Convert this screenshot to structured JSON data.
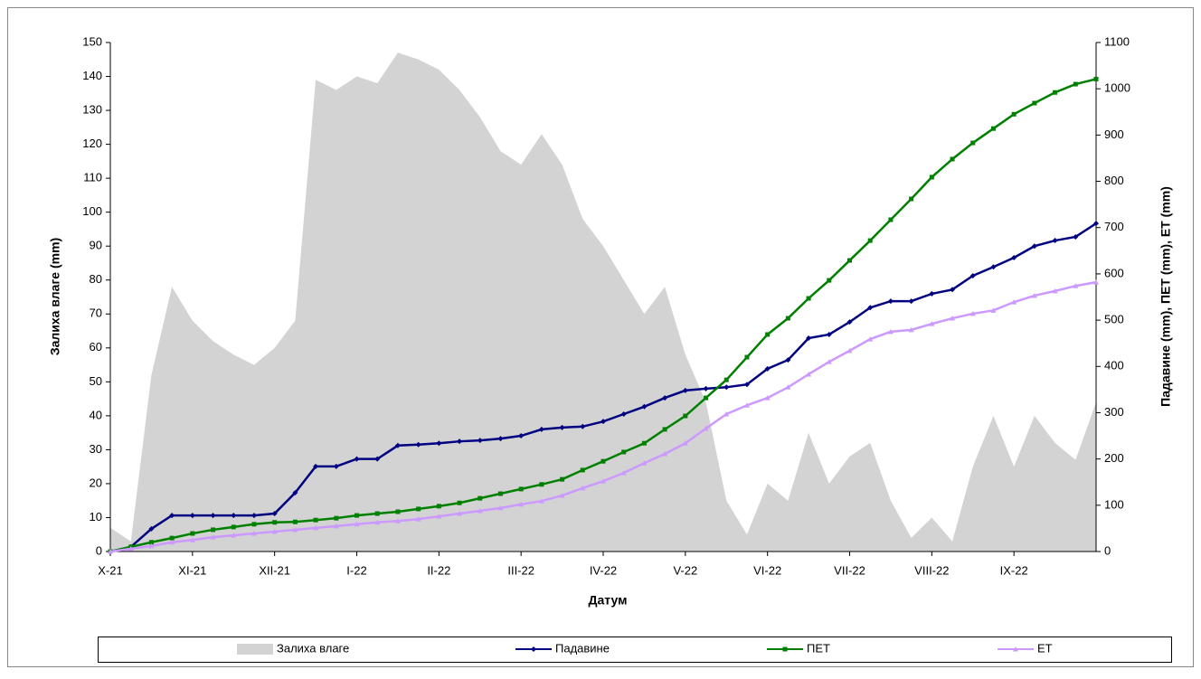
{
  "chart_data": {
    "type": "line",
    "x_label": "Датум",
    "y_label": "Залиха влаге (mm)",
    "y2_label": "Падавине (mm), ПЕТ (mm), ЕТ (mm)",
    "categories": [
      "X-21",
      null,
      null,
      null,
      "XI-21",
      null,
      null,
      null,
      "XII-21",
      null,
      null,
      null,
      "I-22",
      null,
      null,
      null,
      "II-22",
      null,
      null,
      null,
      "III-22",
      null,
      null,
      null,
      "IV-22",
      null,
      null,
      null,
      "V-22",
      null,
      null,
      null,
      "VI-22",
      null,
      null,
      null,
      "VII-22",
      null,
      null,
      null,
      "VIII-22",
      null,
      null,
      null,
      "IX-22",
      null,
      null,
      null,
      null
    ],
    "ylim": [
      0,
      150
    ],
    "yticks": [
      0,
      10,
      20,
      30,
      40,
      50,
      60,
      70,
      80,
      90,
      100,
      110,
      120,
      130,
      140,
      150
    ],
    "y2lim": [
      0,
      1100
    ],
    "y2ticks": [
      0,
      100,
      200,
      300,
      400,
      500,
      600,
      700,
      800,
      900,
      1000,
      1100
    ],
    "legend": "bottom",
    "series": [
      {
        "name": "Залиха влаге",
        "type": "area",
        "color": "#d3d3d3",
        "values": [
          7,
          3,
          52,
          78,
          68,
          62,
          58,
          55,
          60,
          68,
          139,
          136,
          140,
          138,
          147,
          145,
          142,
          136,
          128,
          118,
          114,
          123,
          114,
          98,
          90,
          80,
          70,
          78,
          58,
          44,
          15,
          5,
          20,
          15,
          35,
          20,
          28,
          32,
          15,
          4,
          10,
          3,
          25,
          40,
          25,
          40,
          32,
          27,
          44
        ]
      },
      {
        "name": "Падавине",
        "type": "line",
        "axis": "y2",
        "color": "#000080",
        "marker": "diamond",
        "values": [
          0,
          10,
          49,
          78,
          78,
          78,
          78,
          78,
          82,
          127,
          184,
          184,
          200,
          200,
          229,
          231,
          234,
          238,
          240,
          244,
          250,
          264,
          268,
          270,
          281,
          297,
          313,
          332,
          348,
          352,
          355,
          361,
          395,
          414,
          461,
          469,
          496,
          527,
          541,
          541,
          557,
          566,
          596,
          615,
          635,
          660,
          672,
          680,
          709
        ]
      },
      {
        "name": "ПЕТ",
        "type": "line",
        "axis": "y2",
        "color": "#008000",
        "marker": "square",
        "values": [
          0,
          10,
          20,
          29,
          39,
          47,
          53,
          59,
          63,
          64,
          68,
          72,
          78,
          82,
          86,
          92,
          98,
          105,
          115,
          125,
          135,
          145,
          156,
          176,
          195,
          215,
          234,
          264,
          293,
          332,
          371,
          420,
          469,
          504,
          547,
          586,
          629,
          672,
          717,
          762,
          809,
          848,
          883,
          914,
          945,
          969,
          992,
          1010,
          1021
        ]
      },
      {
        "name": "ЕТ",
        "type": "line",
        "axis": "y2",
        "color": "#cc99ff",
        "marker": "triangle",
        "values": [
          0,
          6,
          12,
          20,
          25,
          31,
          35,
          39,
          43,
          47,
          51,
          55,
          59,
          63,
          66,
          70,
          76,
          82,
          88,
          94,
          102,
          109,
          121,
          137,
          152,
          170,
          191,
          211,
          234,
          266,
          297,
          316,
          332,
          355,
          383,
          410,
          434,
          459,
          475,
          479,
          492,
          504,
          514,
          521,
          539,
          553,
          563,
          574,
          582
        ]
      }
    ]
  }
}
